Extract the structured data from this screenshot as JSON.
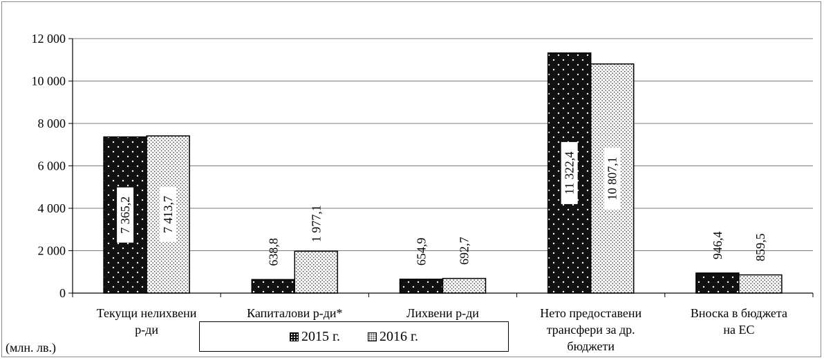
{
  "chart_data": {
    "type": "bar",
    "categories": [
      [
        "Текущи нелихвени",
        "р-ди"
      ],
      [
        "Капиталови р-ди*"
      ],
      [
        "Лихвени р-ди"
      ],
      [
        "Нето предоставени",
        "трансфери за др.",
        "бюджети"
      ],
      [
        "Вноска в бюджета",
        "на ЕС"
      ]
    ],
    "series": [
      {
        "name": "2015 г.",
        "values": [
          7365.2,
          638.8,
          654.9,
          11322.4,
          946.4
        ],
        "labels": [
          "7 365,2",
          "638,8",
          "654,9",
          "11 322,4",
          "946,4"
        ]
      },
      {
        "name": "2016 г.",
        "values": [
          7413.7,
          1977.1,
          692.7,
          10807.1,
          859.5
        ],
        "labels": [
          "7 413,7",
          "1 977,1",
          "692,7",
          "10 807,1",
          "859,5"
        ]
      }
    ],
    "yticks": [
      "0",
      "2 000",
      "4 000",
      "6 000",
      "8 000",
      "10 000",
      "12 000"
    ],
    "ylim": [
      0,
      12000
    ],
    "grid": true,
    "unit_label": "(млн. лв.)",
    "legend_position": "bottom-center",
    "colors": {
      "s2015": "#111111",
      "s2016": "#ffffff"
    }
  }
}
